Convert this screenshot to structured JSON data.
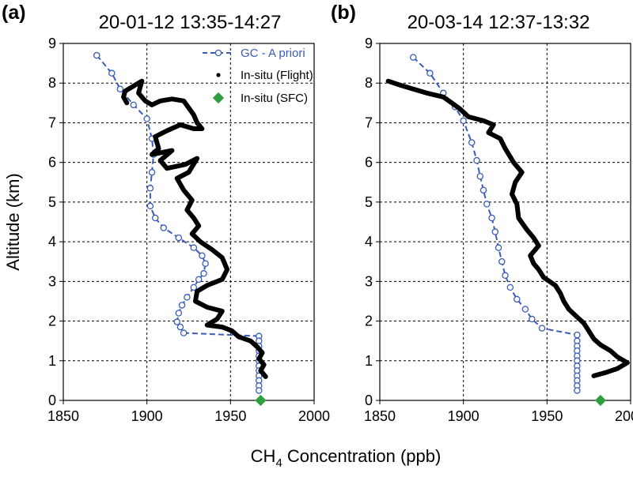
{
  "figure": {
    "xlabel_main": "CH",
    "xlabel_sub": "4",
    "xlabel_rest": " Concentration (ppb)",
    "ylabel": "Altitude (km)"
  },
  "legend": {
    "gc": "GC - A priori",
    "flight": "In-situ (Flight)",
    "sfc": "In-situ (SFC)"
  },
  "colors": {
    "gc": "#3a5bb8",
    "flight": "#000000",
    "sfc": "#2e9e3e"
  },
  "chart_data": [
    {
      "panel": "(a)",
      "title": "20-01-12  13:35-14:27",
      "type": "line",
      "xlim": [
        1850,
        2000
      ],
      "ylim": [
        0,
        9
      ],
      "xticks": [
        "1850",
        "1900",
        "1950",
        "2000"
      ],
      "yticks": [
        "0",
        "1",
        "2",
        "3",
        "4",
        "5",
        "6",
        "7",
        "8",
        "9"
      ],
      "grid": "dashed",
      "legend_position": "top-right",
      "series": [
        {
          "name": "GC - A priori",
          "style": "dashed-line-open-circles",
          "points": [
            [
              1870,
              8.7
            ],
            [
              1879,
              8.25
            ],
            [
              1884,
              7.85
            ],
            [
              1892,
              7.45
            ],
            [
              1900,
              7.1
            ],
            [
              1903,
              6.6
            ],
            [
              1904,
              6.2
            ],
            [
              1903,
              5.75
            ],
            [
              1902,
              5.35
            ],
            [
              1902,
              4.9
            ],
            [
              1905,
              4.6
            ],
            [
              1910,
              4.35
            ],
            [
              1919,
              4.1
            ],
            [
              1928,
              3.85
            ],
            [
              1933,
              3.65
            ],
            [
              1935,
              3.45
            ],
            [
              1934,
              3.2
            ],
            [
              1931,
              3.05
            ],
            [
              1928,
              2.85
            ],
            [
              1924,
              2.6
            ],
            [
              1921,
              2.4
            ],
            [
              1919,
              2.2
            ],
            [
              1918,
              1.98
            ],
            [
              1920,
              1.85
            ],
            [
              1922,
              1.7
            ],
            [
              1967,
              1.62
            ],
            [
              1967,
              1.5
            ],
            [
              1967,
              1.37
            ],
            [
              1967,
              1.25
            ],
            [
              1967,
              1.12
            ],
            [
              1967,
              1.0
            ],
            [
              1967,
              0.87
            ],
            [
              1967,
              0.75
            ],
            [
              1967,
              0.62
            ],
            [
              1967,
              0.5
            ],
            [
              1967,
              0.37
            ],
            [
              1967,
              0.25
            ]
          ]
        },
        {
          "name": "In-situ (Flight)",
          "style": "dots",
          "points": [
            [
              1888,
              7.5
            ],
            [
              1886,
              7.65
            ],
            [
              1887,
              7.8
            ],
            [
              1893,
              7.95
            ],
            [
              1897,
              8.05
            ],
            [
              1895,
              7.75
            ],
            [
              1899,
              7.55
            ],
            [
              1903,
              7.45
            ],
            [
              1908,
              7.55
            ],
            [
              1915,
              7.6
            ],
            [
              1922,
              7.55
            ],
            [
              1928,
              7.2
            ],
            [
              1930,
              7.0
            ],
            [
              1933,
              6.85
            ],
            [
              1928,
              6.85
            ],
            [
              1920,
              6.95
            ],
            [
              1912,
              6.8
            ],
            [
              1905,
              6.65
            ],
            [
              1907,
              6.35
            ],
            [
              1903,
              6.2
            ],
            [
              1915,
              6.3
            ],
            [
              1908,
              6.05
            ],
            [
              1912,
              5.85
            ],
            [
              1923,
              5.95
            ],
            [
              1930,
              6.1
            ],
            [
              1925,
              5.75
            ],
            [
              1918,
              5.6
            ],
            [
              1922,
              5.3
            ],
            [
              1927,
              5.05
            ],
            [
              1924,
              4.8
            ],
            [
              1928,
              4.6
            ],
            [
              1931,
              4.4
            ],
            [
              1927,
              4.2
            ],
            [
              1932,
              4.0
            ],
            [
              1939,
              3.8
            ],
            [
              1945,
              3.6
            ],
            [
              1948,
              3.3
            ],
            [
              1945,
              3.05
            ],
            [
              1936,
              2.9
            ],
            [
              1930,
              2.75
            ],
            [
              1929,
              2.5
            ],
            [
              1936,
              2.35
            ],
            [
              1945,
              2.25
            ],
            [
              1942,
              2.05
            ],
            [
              1936,
              1.9
            ],
            [
              1945,
              1.85
            ],
            [
              1951,
              1.75
            ],
            [
              1955,
              1.6
            ],
            [
              1962,
              1.5
            ],
            [
              1966,
              1.35
            ],
            [
              1969,
              1.2
            ],
            [
              1967,
              1.05
            ],
            [
              1970,
              0.9
            ],
            [
              1968,
              0.75
            ],
            [
              1971,
              0.6
            ]
          ]
        },
        {
          "name": "In-situ (SFC)",
          "style": "diamond",
          "points": [
            [
              1968,
              0.0
            ]
          ]
        }
      ]
    },
    {
      "panel": "(b)",
      "title": "20-03-14  12:37-13:32",
      "type": "line",
      "xlim": [
        1850,
        2000
      ],
      "ylim": [
        0,
        9
      ],
      "xticks": [
        "1850",
        "1900",
        "1950",
        "2000"
      ],
      "yticks": [
        "0",
        "1",
        "2",
        "3",
        "4",
        "5",
        "6",
        "7",
        "8",
        "9"
      ],
      "grid": "dashed",
      "series": [
        {
          "name": "GC - A priori",
          "style": "dashed-line-open-circles",
          "points": [
            [
              1870,
              8.65
            ],
            [
              1880,
              8.25
            ],
            [
              1888,
              7.75
            ],
            [
              1895,
              7.4
            ],
            [
              1900,
              7.05
            ],
            [
              1905,
              6.5
            ],
            [
              1908,
              6.05
            ],
            [
              1910,
              5.65
            ],
            [
              1912,
              5.3
            ],
            [
              1914,
              4.95
            ],
            [
              1917,
              4.6
            ],
            [
              1919,
              4.25
            ],
            [
              1921,
              3.85
            ],
            [
              1923,
              3.5
            ],
            [
              1925,
              3.15
            ],
            [
              1928,
              2.85
            ],
            [
              1932,
              2.55
            ],
            [
              1937,
              2.3
            ],
            [
              1941,
              2.05
            ],
            [
              1947,
              1.82
            ],
            [
              1968,
              1.65
            ],
            [
              1968,
              1.5
            ],
            [
              1968,
              1.37
            ],
            [
              1968,
              1.25
            ],
            [
              1968,
              1.12
            ],
            [
              1968,
              1.0
            ],
            [
              1968,
              0.87
            ],
            [
              1968,
              0.75
            ],
            [
              1968,
              0.62
            ],
            [
              1968,
              0.5
            ],
            [
              1968,
              0.37
            ],
            [
              1968,
              0.25
            ]
          ]
        },
        {
          "name": "In-situ (Flight)",
          "style": "dots",
          "points": [
            [
              1855,
              8.05
            ],
            [
              1862,
              7.95
            ],
            [
              1870,
              7.85
            ],
            [
              1878,
              7.75
            ],
            [
              1888,
              7.65
            ],
            [
              1893,
              7.5
            ],
            [
              1898,
              7.35
            ],
            [
              1903,
              7.15
            ],
            [
              1912,
              7.05
            ],
            [
              1918,
              6.95
            ],
            [
              1915,
              6.75
            ],
            [
              1922,
              6.6
            ],
            [
              1925,
              6.35
            ],
            [
              1930,
              6.0
            ],
            [
              1935,
              5.75
            ],
            [
              1931,
              5.5
            ],
            [
              1929,
              5.2
            ],
            [
              1932,
              4.95
            ],
            [
              1933,
              4.6
            ],
            [
              1938,
              4.3
            ],
            [
              1942,
              4.1
            ],
            [
              1945,
              3.9
            ],
            [
              1940,
              3.65
            ],
            [
              1942,
              3.45
            ],
            [
              1945,
              3.3
            ],
            [
              1948,
              3.1
            ],
            [
              1955,
              2.9
            ],
            [
              1958,
              2.7
            ],
            [
              1960,
              2.5
            ],
            [
              1963,
              2.3
            ],
            [
              1968,
              2.1
            ],
            [
              1972,
              1.95
            ],
            [
              1975,
              1.75
            ],
            [
              1978,
              1.55
            ],
            [
              1982,
              1.4
            ],
            [
              1988,
              1.25
            ],
            [
              1992,
              1.1
            ],
            [
              1998,
              0.95
            ],
            [
              1992,
              0.8
            ],
            [
              1985,
              0.7
            ],
            [
              1978,
              0.62
            ]
          ]
        },
        {
          "name": "In-situ (SFC)",
          "style": "diamond",
          "points": [
            [
              1982,
              0.0
            ]
          ]
        }
      ]
    }
  ]
}
